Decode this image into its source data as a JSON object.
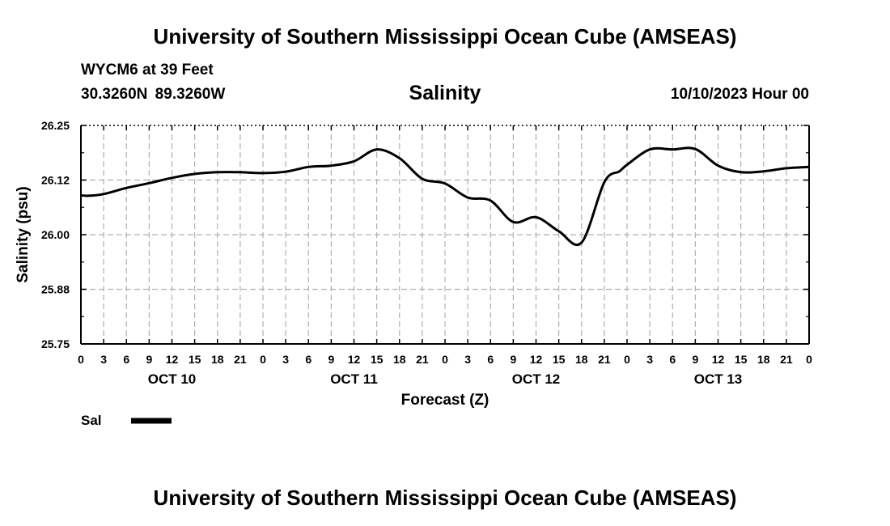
{
  "header": {
    "title": "University of Southern Mississippi Ocean Cube (AMSEAS)",
    "station": "WYCM6 at 39 Feet",
    "coords": "30.3260N 89.3260W",
    "subtitle": "Salinity",
    "datetime": "10/10/2023 Hour 00"
  },
  "footer": {
    "title": "University of Southern Mississippi Ocean Cube (AMSEAS)"
  },
  "chart_data": {
    "type": "line",
    "title": "Salinity",
    "xlabel": "Forecast (Z)",
    "ylabel": "Salinity (psu)",
    "ylim": [
      25.75,
      26.25
    ],
    "xlim": [
      0,
      96
    ],
    "grid": true,
    "y_ticks": [
      "26.25",
      "26.12",
      "26.00",
      "25.88",
      "25.75"
    ],
    "y_tick_values": [
      26.25,
      26.125,
      26.0,
      25.875,
      25.75
    ],
    "x_tick_labels": [
      "0",
      "3",
      "6",
      "9",
      "12",
      "15",
      "18",
      "21",
      "0",
      "3",
      "6",
      "9",
      "12",
      "15",
      "18",
      "21",
      "0",
      "3",
      "6",
      "9",
      "12",
      "15",
      "18",
      "21",
      "0",
      "3",
      "6",
      "9",
      "12",
      "15",
      "18",
      "21",
      "0"
    ],
    "day_labels": [
      {
        "label": "OCT 10",
        "at_hour": 12
      },
      {
        "label": "OCT 11",
        "at_hour": 36
      },
      {
        "label": "OCT 12",
        "at_hour": 60
      },
      {
        "label": "OCT 13",
        "at_hour": 84
      }
    ],
    "legend": [
      {
        "label": "Sal",
        "color": "#000000"
      }
    ],
    "series": [
      {
        "name": "Sal",
        "x": [
          0,
          1,
          3,
          6,
          9,
          12,
          15,
          18,
          21,
          24,
          27,
          30,
          33,
          36,
          39,
          42,
          45,
          48,
          51,
          54,
          57,
          60,
          63,
          66,
          69,
          71,
          72,
          75,
          78,
          81,
          84,
          87,
          90,
          93,
          96
        ],
        "values": [
          26.09,
          26.089,
          26.093,
          26.107,
          26.118,
          26.13,
          26.139,
          26.143,
          26.143,
          26.141,
          26.144,
          26.155,
          26.158,
          26.168,
          26.195,
          26.175,
          26.128,
          26.117,
          26.085,
          26.078,
          26.029,
          26.04,
          26.008,
          25.982,
          26.12,
          26.145,
          26.16,
          26.195,
          26.195,
          26.196,
          26.158,
          26.143,
          26.145,
          26.152,
          26.155
        ]
      }
    ]
  }
}
